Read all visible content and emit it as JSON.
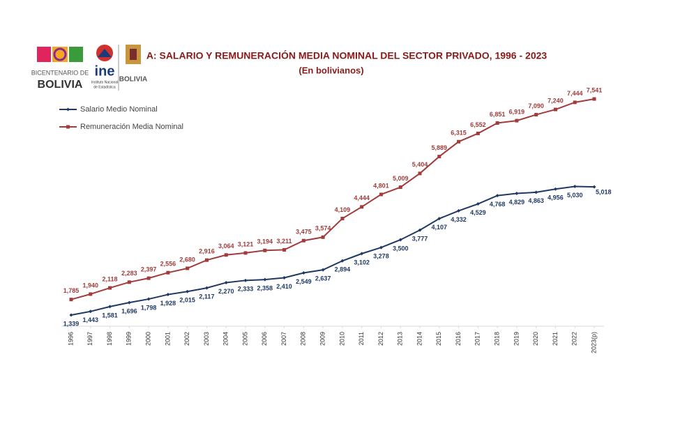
{
  "logos": {
    "bicentenario": [
      "BICENTENARIO DE",
      "BOLIVIA"
    ],
    "ine": [
      "ine",
      "Instituto Nacional",
      "de Estadística"
    ],
    "ministerio": [
      "BOLIVIA"
    ]
  },
  "chart_data": {
    "type": "line",
    "title": "A: SALARIO Y REMUNERACIÓN MEDIA NOMINAL DEL SECTOR PRIVADO, 1996 - 2023",
    "subtitle": "(En bolivianos)",
    "legend": "top-left",
    "categories": [
      "1996",
      "1997",
      "1998",
      "1999",
      "2000",
      "2001",
      "2002",
      "2003",
      "2004",
      "2005",
      "2006",
      "2007",
      "2008",
      "2009",
      "2010",
      "2011",
      "2012",
      "2013",
      "2014",
      "2015",
      "2016",
      "2017",
      "2018",
      "2019",
      "2020",
      "2021",
      "2022",
      "2023(p)"
    ],
    "series": [
      {
        "name": "Salario Medio Nominal",
        "color": "#1f3864",
        "values": [
          1339,
          1443,
          1581,
          1696,
          1798,
          1928,
          2015,
          2117,
          2270,
          2333,
          2358,
          2410,
          2549,
          2637,
          2894,
          3102,
          3278,
          3500,
          3777,
          4107,
          4332,
          4529,
          4768,
          4829,
          4863,
          4956,
          5030,
          5018
        ],
        "value_labels": [
          "1,339",
          "1,443",
          "1,581",
          "1,696",
          "1,798",
          "1,928",
          "2,015",
          "2,117",
          "2,270",
          "2,333",
          "2,358",
          "2,410",
          "2,549",
          "2,637",
          "2,894",
          "3,102",
          "3,278",
          "3,500",
          "3,777",
          "4,107",
          "4,332",
          "4,529",
          "4,768",
          "4,829",
          "4,863",
          "4,956",
          "5,030",
          "5,018"
        ]
      },
      {
        "name": "Remuneración Media Nominal",
        "color": "#a23b3b",
        "values": [
          1785,
          1940,
          2118,
          2283,
          2397,
          2556,
          2680,
          2916,
          3064,
          3121,
          3194,
          3211,
          3475,
          3574,
          4109,
          4444,
          4801,
          5009,
          5404,
          5889,
          6315,
          6552,
          6851,
          6919,
          7090,
          7240,
          7444,
          7541
        ],
        "value_labels": [
          "1,785",
          "1,940",
          "2,118",
          "2,283",
          "2,397",
          "2,556",
          "2,680",
          "2,916",
          "3,064",
          "3,121",
          "3,194",
          "3,211",
          "3,475",
          "3,574",
          "4,109",
          "4,444",
          "4,801",
          "5,009",
          "5,404",
          "5,889",
          "6,315",
          "6,552",
          "6,851",
          "6,919",
          "7,090",
          "7,240",
          "7,444",
          "7,541"
        ]
      }
    ]
  }
}
